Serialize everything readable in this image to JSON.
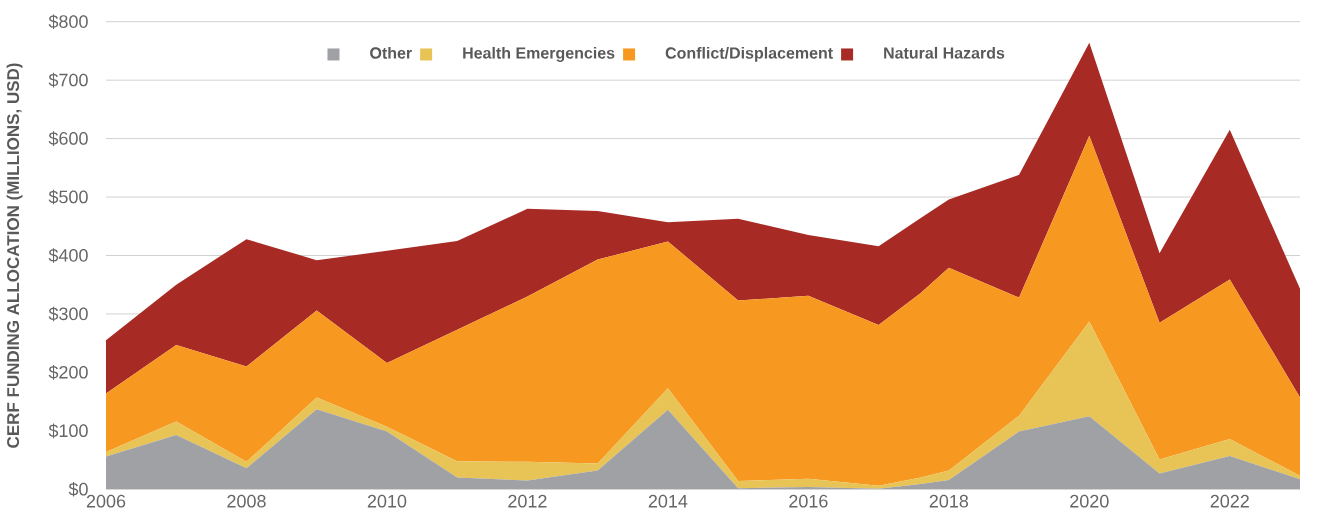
{
  "chart_data": {
    "type": "area",
    "stacked": true,
    "ylabel": "CERF FUNDING ALLOCATION (MILLIONS, USD)",
    "x": [
      2006,
      2007,
      2008,
      2009,
      2010,
      2011,
      2012,
      2013,
      2014,
      2015,
      2016,
      2017,
      2017.6,
      2018,
      2019,
      2020,
      2021,
      2022,
      2023
    ],
    "xlim": [
      2006,
      2023
    ],
    "xticks": [
      2006,
      2008,
      2010,
      2012,
      2014,
      2016,
      2018,
      2020,
      2022
    ],
    "ylim": [
      0,
      800
    ],
    "yticks": [
      {
        "value": 0,
        "label": "$0"
      },
      {
        "value": 100,
        "label": "$100"
      },
      {
        "value": 200,
        "label": "$200"
      },
      {
        "value": 300,
        "label": "$300"
      },
      {
        "value": 400,
        "label": "$400"
      },
      {
        "value": 500,
        "label": "$500"
      },
      {
        "value": 600,
        "label": "$600"
      },
      {
        "value": 700,
        "label": "$700"
      },
      {
        "value": 800,
        "label": "$800"
      }
    ],
    "grid": "y",
    "legend": "top",
    "series": [
      {
        "name": "Other",
        "color": "#a0a1a4",
        "values": [
          56,
          93,
          36,
          137,
          99,
          20,
          15,
          32,
          136,
          2,
          4,
          1,
          9,
          16,
          99,
          125,
          27,
          57,
          17
        ]
      },
      {
        "name": "Health Emergencies",
        "color": "#e8c355",
        "values": [
          8,
          23,
          11,
          20,
          8,
          28,
          32,
          12,
          37,
          12,
          14,
          5,
          11,
          16,
          27,
          162,
          24,
          29,
          6
        ]
      },
      {
        "name": "Conflict/Displacement",
        "color": "#f79820",
        "values": [
          100,
          131,
          163,
          149,
          109,
          225,
          283,
          349,
          251,
          309,
          313,
          275,
          316,
          347,
          202,
          318,
          234,
          273,
          134
        ]
      },
      {
        "name": "Natural Hazards",
        "color": "#a72b24",
        "values": [
          91,
          103,
          218,
          86,
          192,
          152,
          150,
          83,
          33,
          140,
          104,
          135,
          128,
          117,
          210,
          159,
          119,
          256,
          186
        ]
      }
    ]
  }
}
